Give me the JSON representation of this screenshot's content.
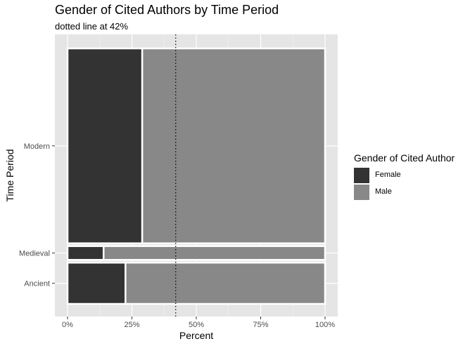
{
  "header": {
    "title": "Gender of Cited Authors by Time Period",
    "subtitle": "dotted line at 42%"
  },
  "chart_data": {
    "type": "bar",
    "variant": "mosaic-stacked-percent-horizontal",
    "title": "Gender of Cited Authors by Time Period",
    "subtitle": "dotted line at 42%",
    "xlabel": "Percent",
    "ylabel": "Time Period",
    "xlim": [
      0,
      100
    ],
    "x_ticks": [
      0,
      25,
      50,
      75,
      100
    ],
    "x_tick_labels": [
      "0%",
      "25%",
      "50%",
      "75%",
      "100%"
    ],
    "categories": [
      "Ancient",
      "Medieval",
      "Modern"
    ],
    "category_share_percent": [
      16.5,
      5.5,
      78.0
    ],
    "series": [
      {
        "name": "Female",
        "color": "#333333",
        "values": [
          22.5,
          14,
          29
        ]
      },
      {
        "name": "Male",
        "color": "#888888",
        "values": [
          77.5,
          86,
          71
        ]
      }
    ],
    "reference_line": {
      "x": 42,
      "style": "dotted"
    },
    "legend": {
      "title": "Gender of Cited Author",
      "position": "right"
    },
    "grid": true,
    "panel_background": "#e5e5e5"
  }
}
